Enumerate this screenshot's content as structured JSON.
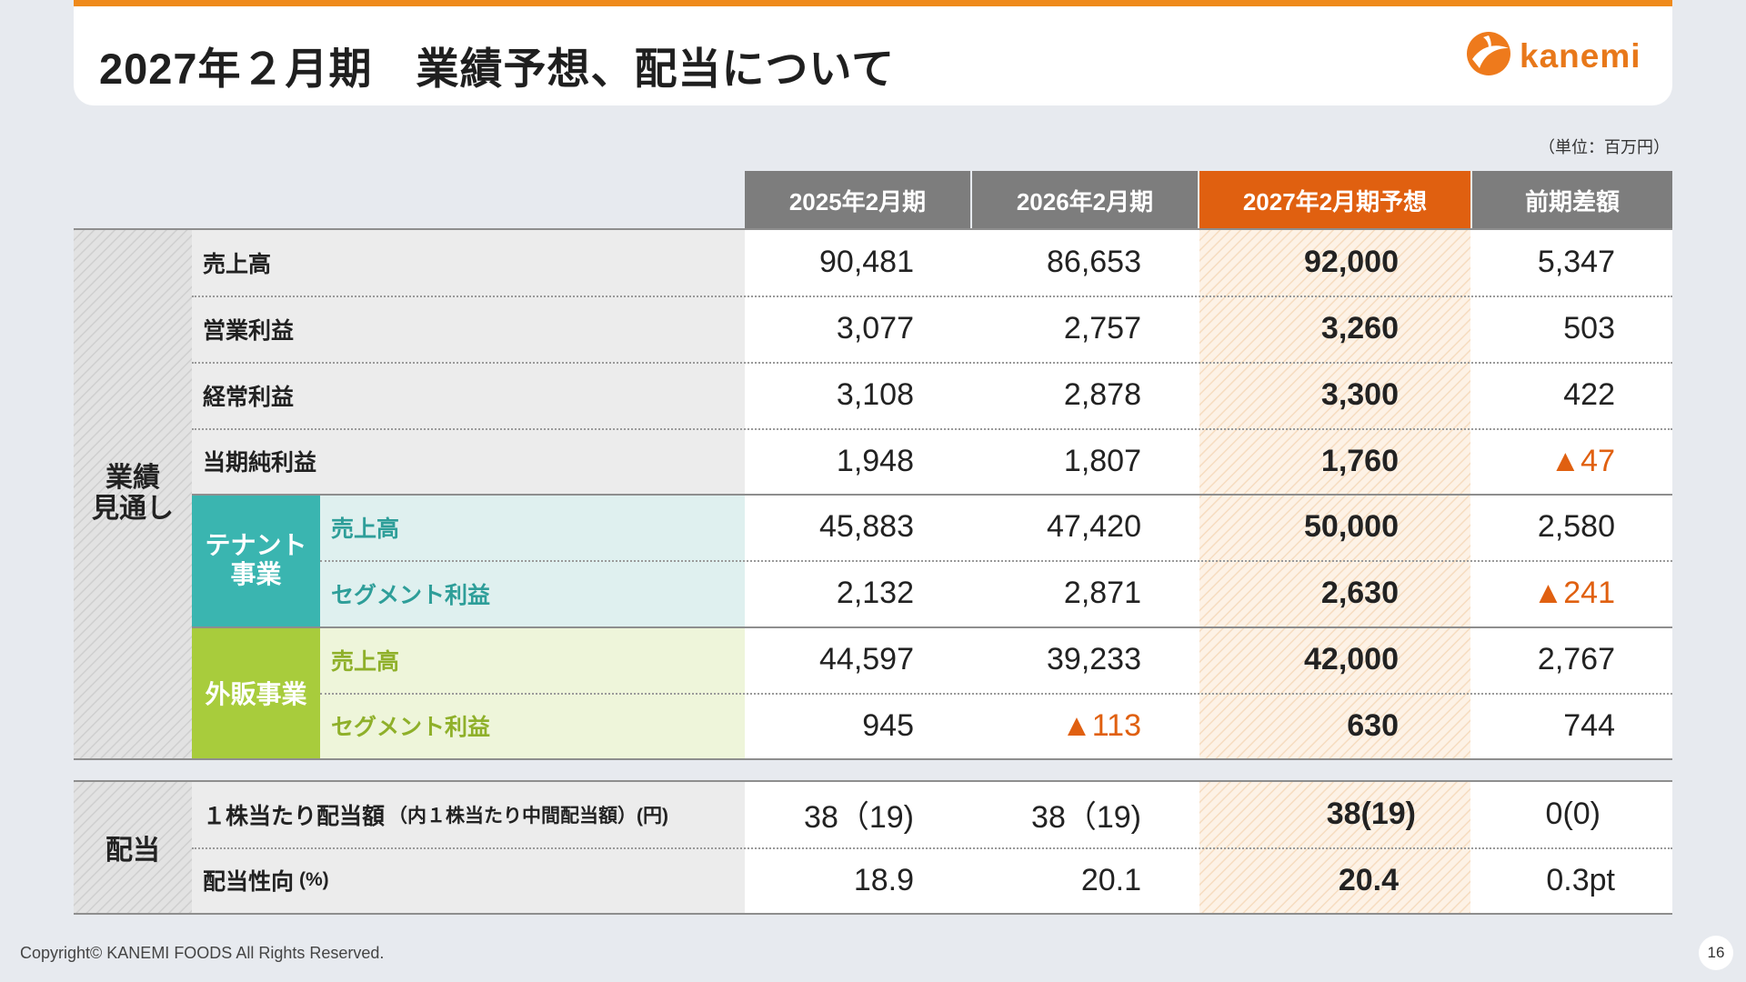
{
  "header": {
    "title": "2027年２月期　業績予想、配当について",
    "logo_text": "kanemi"
  },
  "unit_note": "（単位：百万円）",
  "columns": [
    "2025年2月期",
    "2026年2月期",
    "2027年2月期予想",
    "前期差額"
  ],
  "groups": {
    "performance": "業績\n見通し",
    "tenant": "テナント\n事業",
    "retail": "外販事業",
    "dividend": "配当"
  },
  "rows": [
    {
      "label": "売上高",
      "values": [
        "90,481",
        "86,653",
        "92,000",
        "5,347"
      ]
    },
    {
      "label": "営業利益",
      "values": [
        "3,077",
        "2,757",
        "3,260",
        "503"
      ]
    },
    {
      "label": "経常利益",
      "values": [
        "3,108",
        "2,878",
        "3,300",
        "422"
      ]
    },
    {
      "label": "当期純利益",
      "values": [
        "1,948",
        "1,807",
        "1,760",
        "▲47"
      ]
    },
    {
      "label": "売上高",
      "values": [
        "45,883",
        "47,420",
        "50,000",
        "2,580"
      ]
    },
    {
      "label": "セグメント利益",
      "values": [
        "2,132",
        "2,871",
        "2,630",
        "▲241"
      ]
    },
    {
      "label": "売上高",
      "values": [
        "44,597",
        "39,233",
        "42,000",
        "2,767"
      ]
    },
    {
      "label": "セグメント利益",
      "values": [
        "945",
        "▲113",
        "630",
        "744"
      ]
    }
  ],
  "dividend_rows": [
    {
      "label": "１株当たり配当額",
      "sub": "（内１株当たり中間配当額）(円)",
      "values": [
        "38（19)",
        "38（19)",
        "38(19)",
        "0(0)"
      ]
    },
    {
      "label": "配当性向",
      "sub": "(%)",
      "values": [
        "18.9",
        "20.1",
        "20.4",
        "0.3pt"
      ]
    }
  ],
  "footer": {
    "copyright": "Copyright© KANEMI FOODS All Rights Reserved.",
    "page": "16"
  },
  "colors": {
    "accent": "#e06010",
    "tenant": "#3ab5b0",
    "retail": "#a8cc3c",
    "header_gray": "#7d7d7d"
  }
}
